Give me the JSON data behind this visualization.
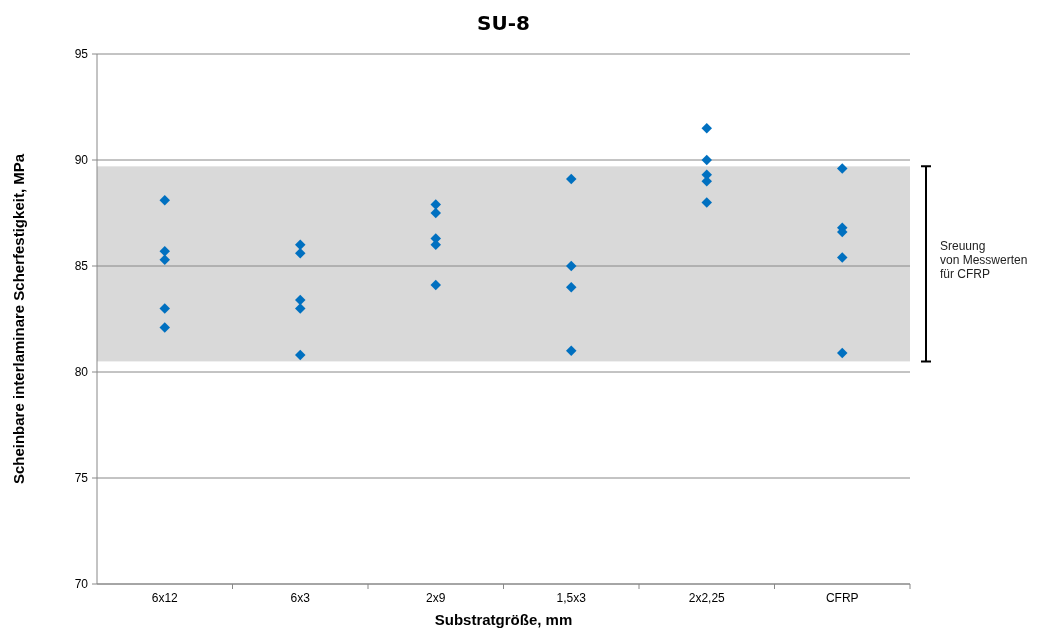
{
  "chart_data": {
    "type": "scatter",
    "title": "SU-8",
    "xlabel": "Substratgröße, mm",
    "ylabel": "Scheinbare interlaminare Scherfestigkeit, MPa",
    "categories": [
      "6x12",
      "6x3",
      "2x9",
      "1,5x3",
      "2x2,25",
      "CFRP"
    ],
    "series": [
      {
        "color": "#0070c0",
        "x": [
          "6x12",
          "6x12",
          "6x12",
          "6x12",
          "6x12",
          "6x3",
          "6x3",
          "6x3",
          "6x3",
          "6x3",
          "2x9",
          "2x9",
          "2x9",
          "2x9",
          "2x9",
          "1,5x3",
          "1,5x3",
          "1,5x3",
          "1,5x3",
          "2x2,25",
          "2x2,25",
          "2x2,25",
          "2x2,25",
          "2x2,25",
          "CFRP",
          "CFRP",
          "CFRP",
          "CFRP",
          "CFRP"
        ],
        "values": [
          88.1,
          85.7,
          85.3,
          83.0,
          82.1,
          86.0,
          85.6,
          83.4,
          83.0,
          80.8,
          87.9,
          87.5,
          86.3,
          86.0,
          84.1,
          89.1,
          85.0,
          84.0,
          81.0,
          91.5,
          90.0,
          89.3,
          89.0,
          88.0,
          89.6,
          86.8,
          86.6,
          85.4,
          80.9
        ]
      }
    ],
    "ylim": [
      70,
      95
    ],
    "yticks": [
      70,
      75,
      80,
      85,
      90,
      95
    ],
    "grid": "y",
    "marker": "diamond",
    "bands": [
      {
        "axis": "y",
        "from": 80.5,
        "to": 89.7,
        "label": "Sreuung\nvon Messwerten\nfür CFRP",
        "color": "#d9d9d9"
      }
    ]
  }
}
